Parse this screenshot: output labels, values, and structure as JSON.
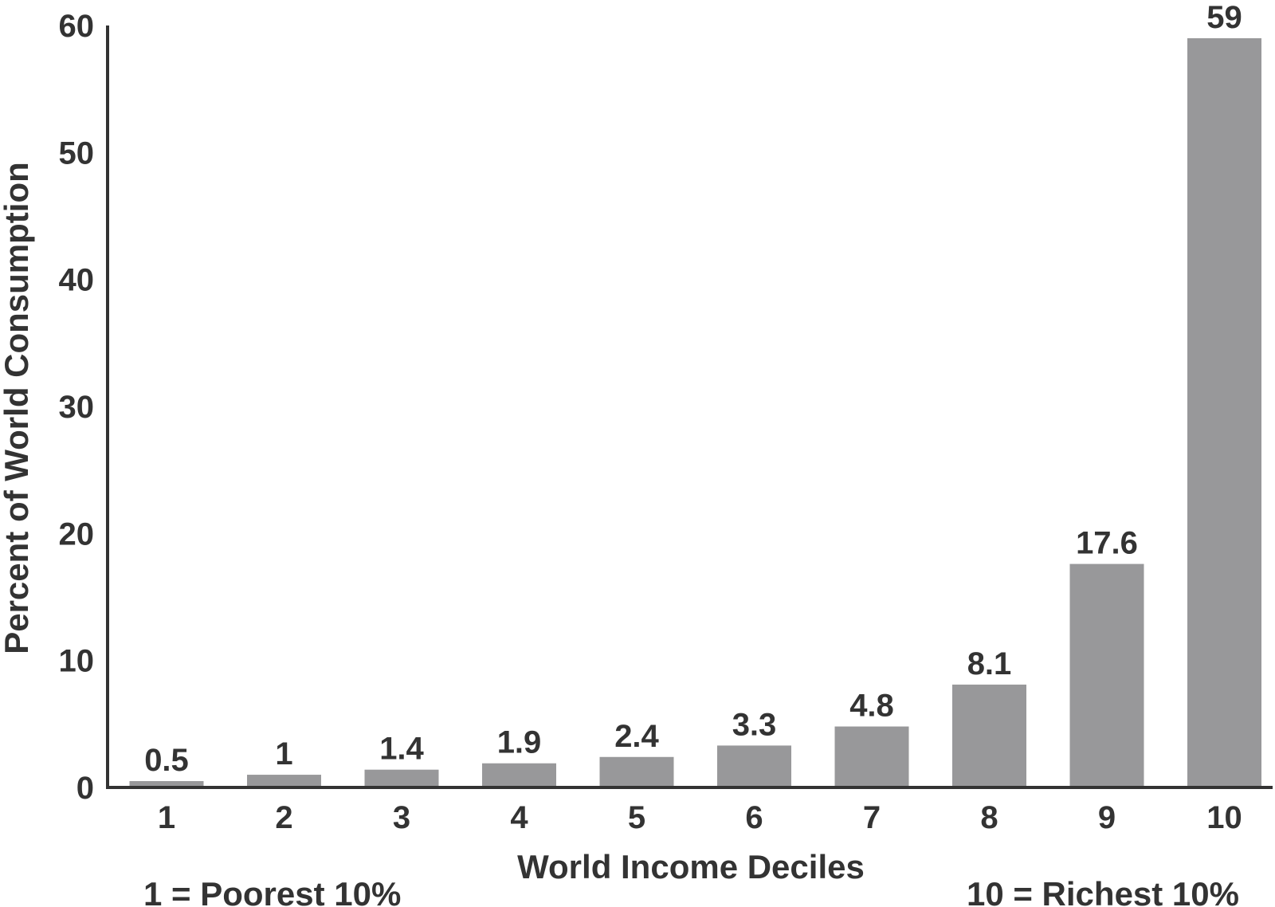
{
  "chart_data": {
    "type": "bar",
    "title": "",
    "xlabel": "World Income Deciles",
    "ylabel": "Percent of World Consumption",
    "categories": [
      "1",
      "2",
      "3",
      "4",
      "5",
      "6",
      "7",
      "8",
      "9",
      "10"
    ],
    "values": [
      0.5,
      1,
      1.4,
      1.9,
      2.4,
      3.3,
      4.8,
      8.1,
      17.6,
      59
    ],
    "value_labels": [
      "0.5",
      "1",
      "1.4",
      "1.9",
      "2.4",
      "3.3",
      "4.8",
      "8.1",
      "17.6",
      "59"
    ],
    "ylim": [
      0,
      60
    ],
    "yticks": [
      0,
      10,
      20,
      30,
      40,
      50,
      60
    ],
    "grid": false,
    "legend": "none",
    "bar_color": "#98989a",
    "annotations": {
      "left": "1 = Poorest 10%",
      "right": "10 = Richest 10%"
    }
  }
}
